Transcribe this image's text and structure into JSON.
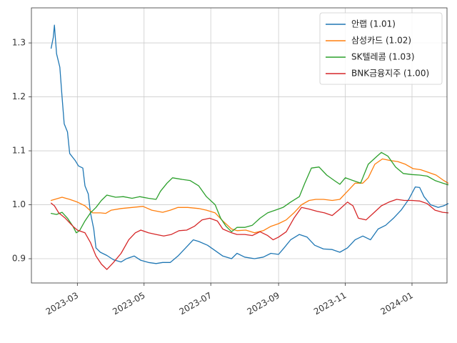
{
  "chart_data": {
    "type": "line",
    "title": "",
    "xlabel": "",
    "ylabel": "",
    "x_ticks": [
      "2023-03",
      "2023-05",
      "2023-07",
      "2023-09",
      "2023-11",
      "2024-01"
    ],
    "x_tick_dates": [
      "2023-03-01",
      "2023-05-01",
      "2023-07-01",
      "2023-09-01",
      "2023-11-01",
      "2024-01-01"
    ],
    "xlim": [
      "2023-01-18",
      "2024-02-02"
    ],
    "y_ticks": [
      "0.9",
      "1.0",
      "1.1",
      "1.2",
      "1.3"
    ],
    "y_tick_values": [
      0.9,
      1.0,
      1.1,
      1.2,
      1.3
    ],
    "ylim": [
      0.855,
      1.365
    ],
    "grid": true,
    "legend_position": "top-right",
    "series": [
      {
        "name": "안랩 (1.01)",
        "color": "#1f77b4",
        "points": [
          [
            "2023-02-05",
            1.29
          ],
          [
            "2023-02-07",
            1.31
          ],
          [
            "2023-02-08",
            1.333
          ],
          [
            "2023-02-10",
            1.28
          ],
          [
            "2023-02-13",
            1.255
          ],
          [
            "2023-02-15",
            1.2
          ],
          [
            "2023-02-17",
            1.15
          ],
          [
            "2023-02-20",
            1.135
          ],
          [
            "2023-02-22",
            1.095
          ],
          [
            "2023-02-27",
            1.082
          ],
          [
            "2023-03-02",
            1.072
          ],
          [
            "2023-03-06",
            1.068
          ],
          [
            "2023-03-08",
            1.035
          ],
          [
            "2023-03-11",
            1.02
          ],
          [
            "2023-03-13",
            0.985
          ],
          [
            "2023-03-16",
            0.955
          ],
          [
            "2023-03-18",
            0.92
          ],
          [
            "2023-03-22",
            0.912
          ],
          [
            "2023-03-28",
            0.906
          ],
          [
            "2023-04-03",
            0.898
          ],
          [
            "2023-04-10",
            0.894
          ],
          [
            "2023-04-15",
            0.9
          ],
          [
            "2023-04-22",
            0.905
          ],
          [
            "2023-04-28",
            0.897
          ],
          [
            "2023-05-05",
            0.893
          ],
          [
            "2023-05-12",
            0.891
          ],
          [
            "2023-05-18",
            0.893
          ],
          [
            "2023-05-25",
            0.893
          ],
          [
            "2023-06-01",
            0.905
          ],
          [
            "2023-06-08",
            0.92
          ],
          [
            "2023-06-15",
            0.935
          ],
          [
            "2023-06-20",
            0.932
          ],
          [
            "2023-06-28",
            0.925
          ],
          [
            "2023-07-05",
            0.915
          ],
          [
            "2023-07-12",
            0.905
          ],
          [
            "2023-07-20",
            0.9
          ],
          [
            "2023-07-25",
            0.91
          ],
          [
            "2023-08-01",
            0.903
          ],
          [
            "2023-08-10",
            0.9
          ],
          [
            "2023-08-18",
            0.903
          ],
          [
            "2023-08-25",
            0.91
          ],
          [
            "2023-09-01",
            0.908
          ],
          [
            "2023-09-06",
            0.92
          ],
          [
            "2023-09-12",
            0.935
          ],
          [
            "2023-09-20",
            0.945
          ],
          [
            "2023-09-27",
            0.94
          ],
          [
            "2023-10-04",
            0.925
          ],
          [
            "2023-10-12",
            0.918
          ],
          [
            "2023-10-20",
            0.917
          ],
          [
            "2023-10-27",
            0.912
          ],
          [
            "2023-11-03",
            0.92
          ],
          [
            "2023-11-10",
            0.935
          ],
          [
            "2023-11-17",
            0.942
          ],
          [
            "2023-11-24",
            0.935
          ],
          [
            "2023-12-01",
            0.955
          ],
          [
            "2023-12-08",
            0.962
          ],
          [
            "2023-12-15",
            0.975
          ],
          [
            "2023-12-22",
            0.99
          ],
          [
            "2023-12-29",
            1.01
          ],
          [
            "2024-01-04",
            1.033
          ],
          [
            "2024-01-08",
            1.032
          ],
          [
            "2024-01-12",
            1.015
          ],
          [
            "2024-01-18",
            1.0
          ],
          [
            "2024-01-25",
            0.995
          ],
          [
            "2024-01-30",
            0.998
          ],
          [
            "2024-02-03",
            1.002
          ]
        ]
      },
      {
        "name": "삼성카드 (1.02)",
        "color": "#ff7f0e",
        "points": [
          [
            "2023-02-05",
            1.008
          ],
          [
            "2023-02-10",
            1.011
          ],
          [
            "2023-02-15",
            1.014
          ],
          [
            "2023-02-22",
            1.01
          ],
          [
            "2023-03-01",
            1.005
          ],
          [
            "2023-03-08",
            0.998
          ],
          [
            "2023-03-15",
            0.985
          ],
          [
            "2023-03-22",
            0.985
          ],
          [
            "2023-03-27",
            0.984
          ],
          [
            "2023-04-01",
            0.99
          ],
          [
            "2023-04-10",
            0.993
          ],
          [
            "2023-04-20",
            0.995
          ],
          [
            "2023-04-30",
            0.997
          ],
          [
            "2023-05-08",
            0.99
          ],
          [
            "2023-05-18",
            0.986
          ],
          [
            "2023-05-25",
            0.99
          ],
          [
            "2023-06-01",
            0.995
          ],
          [
            "2023-06-10",
            0.995
          ],
          [
            "2023-06-20",
            0.993
          ],
          [
            "2023-06-27",
            0.99
          ],
          [
            "2023-07-05",
            0.985
          ],
          [
            "2023-07-12",
            0.97
          ],
          [
            "2023-07-20",
            0.955
          ],
          [
            "2023-07-25",
            0.952
          ],
          [
            "2023-08-02",
            0.953
          ],
          [
            "2023-08-10",
            0.948
          ],
          [
            "2023-08-18",
            0.952
          ],
          [
            "2023-08-25",
            0.96
          ],
          [
            "2023-09-01",
            0.965
          ],
          [
            "2023-09-08",
            0.972
          ],
          [
            "2023-09-15",
            0.985
          ],
          [
            "2023-09-22",
            1.0
          ],
          [
            "2023-09-29",
            1.008
          ],
          [
            "2023-10-05",
            1.01
          ],
          [
            "2023-10-12",
            1.01
          ],
          [
            "2023-10-20",
            1.008
          ],
          [
            "2023-10-27",
            1.01
          ],
          [
            "2023-11-03",
            1.025
          ],
          [
            "2023-11-10",
            1.04
          ],
          [
            "2023-11-17",
            1.04
          ],
          [
            "2023-11-22",
            1.05
          ],
          [
            "2023-11-28",
            1.075
          ],
          [
            "2023-12-05",
            1.085
          ],
          [
            "2023-12-12",
            1.082
          ],
          [
            "2023-12-19",
            1.08
          ],
          [
            "2023-12-26",
            1.075
          ],
          [
            "2024-01-02",
            1.067
          ],
          [
            "2024-01-09",
            1.065
          ],
          [
            "2024-01-16",
            1.06
          ],
          [
            "2024-01-23",
            1.055
          ],
          [
            "2024-01-30",
            1.045
          ],
          [
            "2024-02-03",
            1.04
          ]
        ]
      },
      {
        "name": "SK텔레콤 (1.03)",
        "color": "#2ca02c",
        "points": [
          [
            "2023-02-05",
            0.984
          ],
          [
            "2023-02-10",
            0.982
          ],
          [
            "2023-02-15",
            0.986
          ],
          [
            "2023-02-20",
            0.975
          ],
          [
            "2023-02-25",
            0.96
          ],
          [
            "2023-02-28",
            0.948
          ],
          [
            "2023-03-03",
            0.952
          ],
          [
            "2023-03-08",
            0.97
          ],
          [
            "2023-03-13",
            0.985
          ],
          [
            "2023-03-18",
            0.995
          ],
          [
            "2023-03-23",
            1.008
          ],
          [
            "2023-03-28",
            1.018
          ],
          [
            "2023-04-05",
            1.014
          ],
          [
            "2023-04-12",
            1.015
          ],
          [
            "2023-04-20",
            1.012
          ],
          [
            "2023-04-27",
            1.015
          ],
          [
            "2023-05-05",
            1.012
          ],
          [
            "2023-05-12",
            1.01
          ],
          [
            "2023-05-16",
            1.025
          ],
          [
            "2023-05-22",
            1.04
          ],
          [
            "2023-05-27",
            1.05
          ],
          [
            "2023-06-05",
            1.047
          ],
          [
            "2023-06-12",
            1.045
          ],
          [
            "2023-06-20",
            1.035
          ],
          [
            "2023-06-27",
            1.015
          ],
          [
            "2023-07-05",
            1.0
          ],
          [
            "2023-07-10",
            0.975
          ],
          [
            "2023-07-15",
            0.96
          ],
          [
            "2023-07-20",
            0.95
          ],
          [
            "2023-07-25",
            0.958
          ],
          [
            "2023-08-01",
            0.958
          ],
          [
            "2023-08-08",
            0.962
          ],
          [
            "2023-08-15",
            0.975
          ],
          [
            "2023-08-22",
            0.985
          ],
          [
            "2023-08-29",
            0.99
          ],
          [
            "2023-09-05",
            0.995
          ],
          [
            "2023-09-12",
            1.005
          ],
          [
            "2023-09-20",
            1.015
          ],
          [
            "2023-09-25",
            1.04
          ],
          [
            "2023-10-01",
            1.068
          ],
          [
            "2023-10-08",
            1.07
          ],
          [
            "2023-10-15",
            1.055
          ],
          [
            "2023-10-22",
            1.045
          ],
          [
            "2023-10-27",
            1.038
          ],
          [
            "2023-11-01",
            1.05
          ],
          [
            "2023-11-08",
            1.045
          ],
          [
            "2023-11-15",
            1.04
          ],
          [
            "2023-11-22",
            1.075
          ],
          [
            "2023-11-30",
            1.09
          ],
          [
            "2023-12-04",
            1.097
          ],
          [
            "2023-12-10",
            1.09
          ],
          [
            "2023-12-17",
            1.07
          ],
          [
            "2023-12-24",
            1.058
          ],
          [
            "2024-01-01",
            1.056
          ],
          [
            "2024-01-08",
            1.055
          ],
          [
            "2024-01-15",
            1.053
          ],
          [
            "2024-01-22",
            1.045
          ],
          [
            "2024-01-29",
            1.04
          ],
          [
            "2024-02-03",
            1.037
          ]
        ]
      },
      {
        "name": "BNK금융지주 (1.00)",
        "color": "#d62728",
        "points": [
          [
            "2023-02-05",
            1.003
          ],
          [
            "2023-02-08",
            0.998
          ],
          [
            "2023-02-12",
            0.985
          ],
          [
            "2023-02-18",
            0.975
          ],
          [
            "2023-02-25",
            0.96
          ],
          [
            "2023-03-01",
            0.953
          ],
          [
            "2023-03-08",
            0.948
          ],
          [
            "2023-03-13",
            0.93
          ],
          [
            "2023-03-18",
            0.905
          ],
          [
            "2023-03-23",
            0.89
          ],
          [
            "2023-03-28",
            0.88
          ],
          [
            "2023-04-03",
            0.893
          ],
          [
            "2023-04-10",
            0.91
          ],
          [
            "2023-04-17",
            0.935
          ],
          [
            "2023-04-23",
            0.948
          ],
          [
            "2023-04-28",
            0.953
          ],
          [
            "2023-05-05",
            0.948
          ],
          [
            "2023-05-12",
            0.945
          ],
          [
            "2023-05-19",
            0.942
          ],
          [
            "2023-05-26",
            0.945
          ],
          [
            "2023-06-02",
            0.952
          ],
          [
            "2023-06-09",
            0.953
          ],
          [
            "2023-06-16",
            0.96
          ],
          [
            "2023-06-23",
            0.972
          ],
          [
            "2023-06-30",
            0.975
          ],
          [
            "2023-07-07",
            0.97
          ],
          [
            "2023-07-12",
            0.955
          ],
          [
            "2023-07-20",
            0.948
          ],
          [
            "2023-07-25",
            0.945
          ],
          [
            "2023-08-01",
            0.945
          ],
          [
            "2023-08-08",
            0.943
          ],
          [
            "2023-08-15",
            0.95
          ],
          [
            "2023-08-22",
            0.943
          ],
          [
            "2023-08-27",
            0.935
          ],
          [
            "2023-09-01",
            0.94
          ],
          [
            "2023-09-08",
            0.95
          ],
          [
            "2023-09-15",
            0.975
          ],
          [
            "2023-09-22",
            0.995
          ],
          [
            "2023-09-29",
            0.992
          ],
          [
            "2023-10-06",
            0.988
          ],
          [
            "2023-10-13",
            0.985
          ],
          [
            "2023-10-20",
            0.98
          ],
          [
            "2023-10-27",
            0.992
          ],
          [
            "2023-11-03",
            1.005
          ],
          [
            "2023-11-08",
            0.998
          ],
          [
            "2023-11-13",
            0.975
          ],
          [
            "2023-11-20",
            0.972
          ],
          [
            "2023-11-27",
            0.985
          ],
          [
            "2023-12-04",
            0.998
          ],
          [
            "2023-12-11",
            1.005
          ],
          [
            "2023-12-18",
            1.01
          ],
          [
            "2023-12-25",
            1.008
          ],
          [
            "2024-01-01",
            1.008
          ],
          [
            "2024-01-08",
            1.007
          ],
          [
            "2024-01-15",
            1.002
          ],
          [
            "2024-01-22",
            0.99
          ],
          [
            "2024-01-29",
            0.986
          ],
          [
            "2024-02-03",
            0.985
          ]
        ]
      }
    ]
  }
}
